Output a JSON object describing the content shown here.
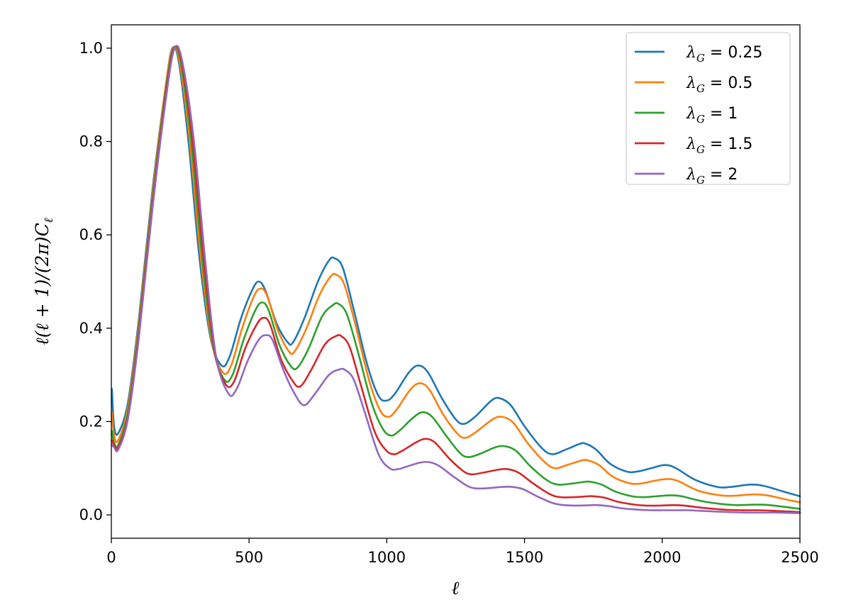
{
  "chart_data": {
    "type": "line",
    "xlabel": "ℓ",
    "ylabel": "ℓ(ℓ + 1)/(2π)C",
    "ylabel_subscript": "ℓ",
    "xlim": [
      0,
      2500
    ],
    "ylim": [
      -0.05,
      1.05
    ],
    "xticks": [
      0,
      500,
      1000,
      1500,
      2000,
      2500
    ],
    "xtick_labels": [
      "0",
      "500",
      "1000",
      "1500",
      "2000",
      "2500"
    ],
    "yticks": [
      0.0,
      0.2,
      0.4,
      0.6,
      0.8,
      1.0
    ],
    "ytick_labels": [
      "0.0",
      "0.2",
      "0.4",
      "0.6",
      "0.8",
      "1.0"
    ],
    "grid": false,
    "legend_position": "top-right",
    "legend_symbol": "λ",
    "legend_subscript": "G",
    "series": [
      {
        "name": "0.25",
        "color": "#1f77b4",
        "points": [
          [
            2,
            0.27
          ],
          [
            10,
            0.19
          ],
          [
            25,
            0.175
          ],
          [
            60,
            0.24
          ],
          [
            100,
            0.42
          ],
          [
            150,
            0.7
          ],
          [
            200,
            0.93
          ],
          [
            222,
            1.0
          ],
          [
            245,
            0.97
          ],
          [
            280,
            0.8
          ],
          [
            320,
            0.55
          ],
          [
            360,
            0.38
          ],
          [
            400,
            0.32
          ],
          [
            430,
            0.34
          ],
          [
            470,
            0.42
          ],
          [
            510,
            0.48
          ],
          [
            535,
            0.5
          ],
          [
            560,
            0.48
          ],
          [
            600,
            0.41
          ],
          [
            640,
            0.37
          ],
          [
            660,
            0.37
          ],
          [
            700,
            0.42
          ],
          [
            750,
            0.5
          ],
          [
            790,
            0.545
          ],
          [
            810,
            0.55
          ],
          [
            840,
            0.53
          ],
          [
            880,
            0.44
          ],
          [
            930,
            0.32
          ],
          [
            970,
            0.255
          ],
          [
            1000,
            0.245
          ],
          [
            1030,
            0.26
          ],
          [
            1080,
            0.305
          ],
          [
            1115,
            0.32
          ],
          [
            1150,
            0.305
          ],
          [
            1200,
            0.25
          ],
          [
            1250,
            0.205
          ],
          [
            1280,
            0.195
          ],
          [
            1320,
            0.21
          ],
          [
            1380,
            0.245
          ],
          [
            1410,
            0.25
          ],
          [
            1450,
            0.235
          ],
          [
            1500,
            0.19
          ],
          [
            1560,
            0.145
          ],
          [
            1600,
            0.13
          ],
          [
            1650,
            0.14
          ],
          [
            1700,
            0.152
          ],
          [
            1720,
            0.153
          ],
          [
            1760,
            0.14
          ],
          [
            1810,
            0.11
          ],
          [
            1870,
            0.093
          ],
          [
            1910,
            0.093
          ],
          [
            1960,
            0.1
          ],
          [
            2010,
            0.107
          ],
          [
            2050,
            0.1
          ],
          [
            2120,
            0.075
          ],
          [
            2200,
            0.06
          ],
          [
            2250,
            0.06
          ],
          [
            2320,
            0.065
          ],
          [
            2370,
            0.062
          ],
          [
            2440,
            0.05
          ],
          [
            2500,
            0.04
          ]
        ]
      },
      {
        "name": "0.5",
        "color": "#ff7f0e",
        "points": [
          [
            2,
            0.22
          ],
          [
            10,
            0.17
          ],
          [
            25,
            0.16
          ],
          [
            60,
            0.23
          ],
          [
            100,
            0.41
          ],
          [
            150,
            0.69
          ],
          [
            200,
            0.93
          ],
          [
            224,
            1.0
          ],
          [
            248,
            0.97
          ],
          [
            285,
            0.8
          ],
          [
            325,
            0.55
          ],
          [
            365,
            0.37
          ],
          [
            405,
            0.305
          ],
          [
            435,
            0.32
          ],
          [
            475,
            0.4
          ],
          [
            515,
            0.465
          ],
          [
            540,
            0.485
          ],
          [
            565,
            0.47
          ],
          [
            605,
            0.395
          ],
          [
            645,
            0.35
          ],
          [
            665,
            0.35
          ],
          [
            705,
            0.395
          ],
          [
            755,
            0.47
          ],
          [
            795,
            0.51
          ],
          [
            815,
            0.515
          ],
          [
            845,
            0.495
          ],
          [
            885,
            0.41
          ],
          [
            935,
            0.29
          ],
          [
            975,
            0.225
          ],
          [
            1005,
            0.21
          ],
          [
            1035,
            0.225
          ],
          [
            1085,
            0.268
          ],
          [
            1120,
            0.282
          ],
          [
            1155,
            0.268
          ],
          [
            1205,
            0.215
          ],
          [
            1255,
            0.175
          ],
          [
            1285,
            0.165
          ],
          [
            1325,
            0.178
          ],
          [
            1385,
            0.205
          ],
          [
            1420,
            0.21
          ],
          [
            1460,
            0.197
          ],
          [
            1510,
            0.155
          ],
          [
            1570,
            0.115
          ],
          [
            1610,
            0.1
          ],
          [
            1660,
            0.108
          ],
          [
            1710,
            0.117
          ],
          [
            1730,
            0.117
          ],
          [
            1770,
            0.107
          ],
          [
            1820,
            0.082
          ],
          [
            1880,
            0.068
          ],
          [
            1920,
            0.067
          ],
          [
            1970,
            0.073
          ],
          [
            2020,
            0.077
          ],
          [
            2060,
            0.072
          ],
          [
            2130,
            0.052
          ],
          [
            2210,
            0.042
          ],
          [
            2260,
            0.041
          ],
          [
            2330,
            0.044
          ],
          [
            2380,
            0.042
          ],
          [
            2450,
            0.033
          ],
          [
            2500,
            0.027
          ]
        ]
      },
      {
        "name": "1",
        "color": "#2ca02c",
        "points": [
          [
            2,
            0.18
          ],
          [
            10,
            0.155
          ],
          [
            25,
            0.15
          ],
          [
            60,
            0.22
          ],
          [
            100,
            0.4
          ],
          [
            150,
            0.68
          ],
          [
            200,
            0.92
          ],
          [
            226,
            1.0
          ],
          [
            252,
            0.97
          ],
          [
            290,
            0.8
          ],
          [
            330,
            0.55
          ],
          [
            370,
            0.36
          ],
          [
            410,
            0.29
          ],
          [
            440,
            0.3
          ],
          [
            480,
            0.375
          ],
          [
            520,
            0.435
          ],
          [
            545,
            0.455
          ],
          [
            570,
            0.44
          ],
          [
            610,
            0.365
          ],
          [
            650,
            0.32
          ],
          [
            675,
            0.315
          ],
          [
            715,
            0.355
          ],
          [
            765,
            0.425
          ],
          [
            805,
            0.45
          ],
          [
            825,
            0.452
          ],
          [
            855,
            0.43
          ],
          [
            895,
            0.35
          ],
          [
            945,
            0.24
          ],
          [
            985,
            0.185
          ],
          [
            1015,
            0.17
          ],
          [
            1045,
            0.18
          ],
          [
            1095,
            0.208
          ],
          [
            1130,
            0.22
          ],
          [
            1165,
            0.21
          ],
          [
            1215,
            0.17
          ],
          [
            1265,
            0.133
          ],
          [
            1295,
            0.124
          ],
          [
            1335,
            0.13
          ],
          [
            1395,
            0.145
          ],
          [
            1430,
            0.147
          ],
          [
            1470,
            0.137
          ],
          [
            1520,
            0.105
          ],
          [
            1580,
            0.075
          ],
          [
            1620,
            0.065
          ],
          [
            1670,
            0.067
          ],
          [
            1720,
            0.071
          ],
          [
            1740,
            0.071
          ],
          [
            1780,
            0.065
          ],
          [
            1830,
            0.05
          ],
          [
            1890,
            0.04
          ],
          [
            1930,
            0.038
          ],
          [
            1980,
            0.04
          ],
          [
            2030,
            0.042
          ],
          [
            2070,
            0.04
          ],
          [
            2140,
            0.03
          ],
          [
            2220,
            0.023
          ],
          [
            2270,
            0.021
          ],
          [
            2340,
            0.022
          ],
          [
            2390,
            0.021
          ],
          [
            2460,
            0.016
          ],
          [
            2500,
            0.013
          ]
        ]
      },
      {
        "name": "1.5",
        "color": "#d62728",
        "points": [
          [
            2,
            0.16
          ],
          [
            10,
            0.15
          ],
          [
            25,
            0.145
          ],
          [
            60,
            0.21
          ],
          [
            100,
            0.39
          ],
          [
            150,
            0.67
          ],
          [
            200,
            0.91
          ],
          [
            228,
            1.0
          ],
          [
            255,
            0.97
          ],
          [
            295,
            0.8
          ],
          [
            335,
            0.55
          ],
          [
            375,
            0.35
          ],
          [
            415,
            0.28
          ],
          [
            445,
            0.285
          ],
          [
            485,
            0.355
          ],
          [
            525,
            0.405
          ],
          [
            550,
            0.422
          ],
          [
            575,
            0.41
          ],
          [
            615,
            0.335
          ],
          [
            655,
            0.29
          ],
          [
            685,
            0.275
          ],
          [
            725,
            0.31
          ],
          [
            775,
            0.365
          ],
          [
            815,
            0.383
          ],
          [
            835,
            0.383
          ],
          [
            865,
            0.36
          ],
          [
            905,
            0.28
          ],
          [
            955,
            0.18
          ],
          [
            995,
            0.14
          ],
          [
            1025,
            0.13
          ],
          [
            1055,
            0.137
          ],
          [
            1105,
            0.155
          ],
          [
            1140,
            0.163
          ],
          [
            1175,
            0.155
          ],
          [
            1225,
            0.122
          ],
          [
            1275,
            0.095
          ],
          [
            1305,
            0.087
          ],
          [
            1345,
            0.09
          ],
          [
            1405,
            0.097
          ],
          [
            1440,
            0.098
          ],
          [
            1480,
            0.09
          ],
          [
            1530,
            0.068
          ],
          [
            1590,
            0.045
          ],
          [
            1630,
            0.038
          ],
          [
            1680,
            0.038
          ],
          [
            1730,
            0.04
          ],
          [
            1750,
            0.04
          ],
          [
            1790,
            0.037
          ],
          [
            1840,
            0.028
          ],
          [
            1900,
            0.022
          ],
          [
            1940,
            0.02
          ],
          [
            1990,
            0.02
          ],
          [
            2040,
            0.021
          ],
          [
            2080,
            0.02
          ],
          [
            2150,
            0.015
          ],
          [
            2230,
            0.011
          ],
          [
            2280,
            0.01
          ],
          [
            2350,
            0.01
          ],
          [
            2400,
            0.009
          ],
          [
            2470,
            0.007
          ],
          [
            2500,
            0.006
          ]
        ]
      },
      {
        "name": "2",
        "color": "#9467bd",
        "points": [
          [
            2,
            0.15
          ],
          [
            10,
            0.145
          ],
          [
            25,
            0.14
          ],
          [
            60,
            0.205
          ],
          [
            100,
            0.38
          ],
          [
            150,
            0.66
          ],
          [
            200,
            0.9
          ],
          [
            230,
            1.0
          ],
          [
            258,
            0.97
          ],
          [
            300,
            0.8
          ],
          [
            340,
            0.55
          ],
          [
            380,
            0.34
          ],
          [
            425,
            0.26
          ],
          [
            455,
            0.27
          ],
          [
            495,
            0.33
          ],
          [
            535,
            0.375
          ],
          [
            560,
            0.385
          ],
          [
            585,
            0.375
          ],
          [
            625,
            0.31
          ],
          [
            665,
            0.26
          ],
          [
            700,
            0.235
          ],
          [
            740,
            0.26
          ],
          [
            790,
            0.3
          ],
          [
            830,
            0.312
          ],
          [
            850,
            0.31
          ],
          [
            880,
            0.29
          ],
          [
            920,
            0.22
          ],
          [
            970,
            0.13
          ],
          [
            1010,
            0.1
          ],
          [
            1040,
            0.098
          ],
          [
            1070,
            0.103
          ],
          [
            1120,
            0.112
          ],
          [
            1155,
            0.113
          ],
          [
            1190,
            0.105
          ],
          [
            1240,
            0.083
          ],
          [
            1290,
            0.063
          ],
          [
            1320,
            0.057
          ],
          [
            1360,
            0.057
          ],
          [
            1420,
            0.06
          ],
          [
            1455,
            0.06
          ],
          [
            1495,
            0.055
          ],
          [
            1545,
            0.04
          ],
          [
            1605,
            0.025
          ],
          [
            1645,
            0.021
          ],
          [
            1695,
            0.02
          ],
          [
            1745,
            0.021
          ],
          [
            1765,
            0.021
          ],
          [
            1805,
            0.019
          ],
          [
            1855,
            0.014
          ],
          [
            1915,
            0.011
          ],
          [
            1955,
            0.01
          ],
          [
            2005,
            0.01
          ],
          [
            2055,
            0.01
          ],
          [
            2095,
            0.01
          ],
          [
            2165,
            0.008
          ],
          [
            2245,
            0.006
          ],
          [
            2295,
            0.005
          ],
          [
            2365,
            0.005
          ],
          [
            2415,
            0.005
          ],
          [
            2480,
            0.004
          ],
          [
            2500,
            0.004
          ]
        ]
      }
    ]
  }
}
